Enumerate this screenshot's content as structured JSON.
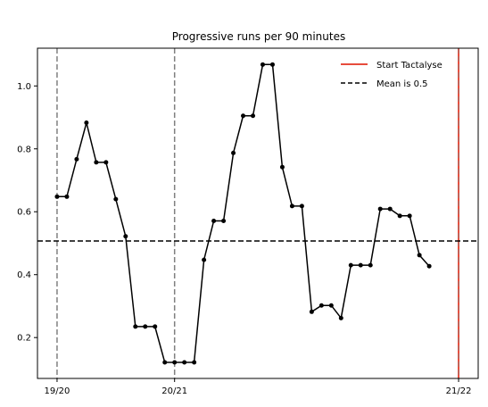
{
  "chart_data": {
    "type": "line",
    "title": "Progressive runs per 90 minutes",
    "xlabel": "",
    "ylabel": "",
    "ylim": [
      0.07,
      1.12
    ],
    "yticks": [
      0.2,
      0.4,
      0.6,
      0.8,
      1.0
    ],
    "ytick_labels": [
      "0.2",
      "0.4",
      "0.6",
      "0.8",
      "1.0"
    ],
    "xlim": [
      -2,
      43
    ],
    "xticks": [
      {
        "x": 0,
        "label": "19/20"
      },
      {
        "x": 12,
        "label": "20/21"
      },
      {
        "x": 41,
        "label": "21/22"
      }
    ],
    "season_lines": [
      0,
      12
    ],
    "start_line_x": 41,
    "mean": 0.507,
    "series": [
      {
        "name": "",
        "color": "#000000",
        "points": [
          [
            0,
            0.648
          ],
          [
            1,
            0.648
          ],
          [
            2,
            0.767
          ],
          [
            3,
            0.883
          ],
          [
            4,
            0.757
          ],
          [
            5,
            0.757
          ],
          [
            6,
            0.64
          ],
          [
            7,
            0.522
          ],
          [
            8,
            0.235
          ],
          [
            9,
            0.235
          ],
          [
            10,
            0.235
          ],
          [
            11,
            0.121
          ],
          [
            12,
            0.121
          ],
          [
            13,
            0.121
          ],
          [
            14,
            0.121
          ],
          [
            15,
            0.447
          ],
          [
            16,
            0.571
          ],
          [
            17,
            0.571
          ],
          [
            18,
            0.787
          ],
          [
            19,
            0.905
          ],
          [
            20,
            0.905
          ],
          [
            21,
            1.068
          ],
          [
            22,
            1.068
          ],
          [
            23,
            0.742
          ],
          [
            24,
            0.618
          ],
          [
            25,
            0.618
          ],
          [
            26,
            0.282
          ],
          [
            27,
            0.302
          ],
          [
            28,
            0.302
          ],
          [
            29,
            0.262
          ],
          [
            30,
            0.43
          ],
          [
            31,
            0.43
          ],
          [
            32,
            0.43
          ],
          [
            33,
            0.609
          ],
          [
            34,
            0.609
          ],
          [
            35,
            0.587
          ],
          [
            36,
            0.587
          ],
          [
            37,
            0.462
          ],
          [
            38,
            0.427
          ]
        ]
      }
    ],
    "legend": {
      "position": "top-right",
      "entries": [
        {
          "label": "Start Tactalyse",
          "color": "#e74c3c",
          "style": "solid"
        },
        {
          "label": "Mean is 0.5",
          "color": "#000000",
          "style": "dashed"
        }
      ]
    },
    "colors": {
      "season_line": "#808080",
      "start_line": "#e74c3c",
      "mean_line": "#000000",
      "series": "#000000"
    },
    "grid": false
  }
}
